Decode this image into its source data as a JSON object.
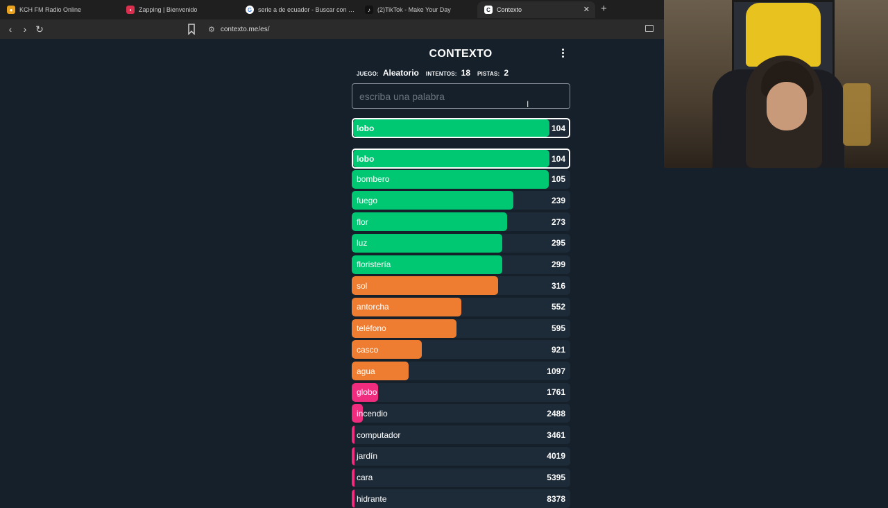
{
  "browser": {
    "tabs": [
      {
        "title": "KCH FM Radio Online",
        "favicon": "radio-favicon",
        "color": "#e8a21f",
        "active": false
      },
      {
        "title": "Zapping | Bienvenido",
        "favicon": "zapping-favicon",
        "color": "#d9304f",
        "active": false
      },
      {
        "title": "serie a de ecuador - Buscar con Goog",
        "favicon": "google-favicon",
        "color": "#ffffff",
        "active": false
      },
      {
        "title": "(2)TikTok - Make Your Day",
        "favicon": "tiktok-favicon",
        "color": "#111111",
        "active": false
      },
      {
        "title": "Contexto",
        "favicon": "contexto-favicon",
        "color": "#ffffff",
        "active": true
      }
    ],
    "url": "contexto.me/es/"
  },
  "app": {
    "logo": "CONTEXTO",
    "stats": {
      "game_label": "JUEGO:",
      "game_value": "Aleatorio",
      "attempts_label": "INTENTOS:",
      "attempts_value": "18",
      "hints_label": "PISTAS:",
      "hints_value": "2"
    },
    "input_placeholder": "escriba una palabra",
    "last_guess": {
      "word": "lobo",
      "distance": "104",
      "color": "green",
      "fill": 0.91
    },
    "guesses": [
      {
        "word": "lobo",
        "distance": "104",
        "color": "green",
        "fill": 0.91,
        "selected": true
      },
      {
        "word": "bombero",
        "distance": "105",
        "color": "green",
        "fill": 0.9
      },
      {
        "word": "fuego",
        "distance": "239",
        "color": "green",
        "fill": 0.74
      },
      {
        "word": "flor",
        "distance": "273",
        "color": "green",
        "fill": 0.71
      },
      {
        "word": "luz",
        "distance": "295",
        "color": "green",
        "fill": 0.69
      },
      {
        "word": "floristería",
        "distance": "299",
        "color": "green",
        "fill": 0.69
      },
      {
        "word": "sol",
        "distance": "316",
        "color": "orange",
        "fill": 0.67
      },
      {
        "word": "antorcha",
        "distance": "552",
        "color": "orange",
        "fill": 0.5
      },
      {
        "word": "teléfono",
        "distance": "595",
        "color": "orange",
        "fill": 0.48
      },
      {
        "word": "casco",
        "distance": "921",
        "color": "orange",
        "fill": 0.32
      },
      {
        "word": "agua",
        "distance": "1097",
        "color": "orange",
        "fill": 0.26
      },
      {
        "word": "globo",
        "distance": "1761",
        "color": "pink",
        "fill": 0.12
      },
      {
        "word": "incendio",
        "distance": "2488",
        "color": "pink",
        "fill": 0.05
      },
      {
        "word": "computador",
        "distance": "3461",
        "color": "pink",
        "fill": 0.012
      },
      {
        "word": "jardín",
        "distance": "4019",
        "color": "pink",
        "fill": 0.01
      },
      {
        "word": "cara",
        "distance": "5395",
        "color": "pink",
        "fill": 0.008
      },
      {
        "word": "hidrante",
        "distance": "8378",
        "color": "pink",
        "fill": 0.006
      }
    ],
    "colors": {
      "green": "#00c872",
      "orange": "#ef7d31",
      "pink": "#f02c7e",
      "background": "#15202b"
    }
  }
}
